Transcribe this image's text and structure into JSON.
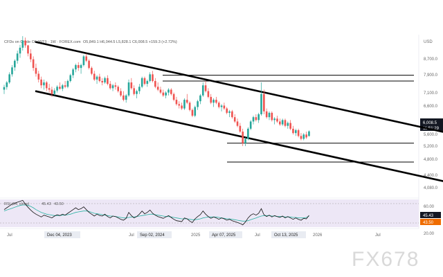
{
  "header": {
    "symbol_line": "CFDs on Crude Oil (WTI) · 1W · FOREX.com",
    "ohlc": "O5,849.1 H6,044.5 L5,828.1 C6,008.5 +159.3 (+2.72%)"
  },
  "price_axis": {
    "currency": "USD",
    "labels": [
      "8,700.0",
      "7,900.0",
      "7,100.0",
      "6,600.0",
      "5,600.0",
      "5,200.0",
      "4,800.0",
      "4,400.0",
      "4,080.0"
    ],
    "last_price": "6,008.5",
    "countdown": "11:51:29",
    "rsi_labels": [
      "60.00",
      "20.00"
    ],
    "rsi_value": "45.43",
    "rsi_ma_value": "43.50"
  },
  "time_axis": {
    "labels": [
      "Jul",
      "Dec 04, 2023",
      "Jul",
      "Sep 02, 2024",
      "2025",
      "Apr 07, 2025",
      "Jul",
      "Oct 13, 2025",
      "2026",
      "Jul"
    ],
    "highlighted": [
      "Dec 04, 2023",
      "Sep 02, 2024",
      "Apr 07, 2025",
      "Oct 13, 2025"
    ]
  },
  "rsi": {
    "label": "RSI (14, close)",
    "value": "45.43",
    "ma_value": "43.50"
  },
  "watermark": "FX678",
  "colors": {
    "up": "#26a69a",
    "down": "#ef5350",
    "rsi_line": "#111111",
    "rsi_ma": "#2bb3a3",
    "rsi_band": "#ede7f6",
    "last_price_bg": "#131722",
    "rsi_value_bg": "#131722",
    "rsi_ma_bg": "#ef6c00",
    "channel": "#000000"
  },
  "chart_data": {
    "type": "candlestick",
    "title": "CFDs on Crude Oil (WTI) · 1W · FOREX.com",
    "ylabel": "USD",
    "ylim": [
      3800,
      9400
    ],
    "timeframe": "1W",
    "x_range": [
      "2023-07",
      "2026-07"
    ],
    "candles": [
      {
        "x": 0,
        "o": 7450,
        "h": 7620,
        "l": 7300,
        "c": 7540
      },
      {
        "x": 1,
        "o": 7540,
        "h": 7750,
        "l": 7450,
        "c": 7700
      },
      {
        "x": 2,
        "o": 7700,
        "h": 8050,
        "l": 7650,
        "c": 7980
      },
      {
        "x": 3,
        "o": 7980,
        "h": 8300,
        "l": 7900,
        "c": 8220
      },
      {
        "x": 4,
        "o": 8220,
        "h": 8500,
        "l": 8100,
        "c": 8450
      },
      {
        "x": 5,
        "o": 8450,
        "h": 8800,
        "l": 8350,
        "c": 8700
      },
      {
        "x": 6,
        "o": 8700,
        "h": 9000,
        "l": 8550,
        "c": 8900
      },
      {
        "x": 7,
        "o": 8900,
        "h": 9300,
        "l": 8800,
        "c": 9150
      },
      {
        "x": 8,
        "o": 9150,
        "h": 9250,
        "l": 8900,
        "c": 8980
      },
      {
        "x": 9,
        "o": 8980,
        "h": 9000,
        "l": 8600,
        "c": 8700
      },
      {
        "x": 10,
        "o": 8700,
        "h": 8850,
        "l": 8400,
        "c": 8500
      },
      {
        "x": 11,
        "o": 8500,
        "h": 8600,
        "l": 8100,
        "c": 8200
      },
      {
        "x": 12,
        "o": 8200,
        "h": 8350,
        "l": 7900,
        "c": 8000
      },
      {
        "x": 13,
        "o": 8000,
        "h": 8100,
        "l": 7700,
        "c": 7800
      },
      {
        "x": 14,
        "o": 7800,
        "h": 7900,
        "l": 7500,
        "c": 7600
      },
      {
        "x": 15,
        "o": 7600,
        "h": 7800,
        "l": 7450,
        "c": 7700
      },
      {
        "x": 16,
        "o": 7700,
        "h": 7750,
        "l": 7400,
        "c": 7500
      },
      {
        "x": 17,
        "o": 7500,
        "h": 7650,
        "l": 7350,
        "c": 7450
      },
      {
        "x": 18,
        "o": 7450,
        "h": 7550,
        "l": 7200,
        "c": 7300
      },
      {
        "x": 19,
        "o": 7300,
        "h": 7500,
        "l": 7250,
        "c": 7420
      },
      {
        "x": 20,
        "o": 7420,
        "h": 7600,
        "l": 7350,
        "c": 7550
      },
      {
        "x": 21,
        "o": 7550,
        "h": 7700,
        "l": 7450,
        "c": 7480
      },
      {
        "x": 22,
        "o": 7480,
        "h": 7650,
        "l": 7400,
        "c": 7600
      },
      {
        "x": 23,
        "o": 7600,
        "h": 7750,
        "l": 7500,
        "c": 7550
      },
      {
        "x": 24,
        "o": 7550,
        "h": 7800,
        "l": 7500,
        "c": 7750
      },
      {
        "x": 25,
        "o": 7750,
        "h": 8000,
        "l": 7700,
        "c": 7950
      },
      {
        "x": 26,
        "o": 7950,
        "h": 8200,
        "l": 7850,
        "c": 8150
      },
      {
        "x": 27,
        "o": 8150,
        "h": 8350,
        "l": 8050,
        "c": 8300
      },
      {
        "x": 28,
        "o": 8300,
        "h": 8400,
        "l": 8100,
        "c": 8200
      },
      {
        "x": 29,
        "o": 8200,
        "h": 8350,
        "l": 8000,
        "c": 8300
      },
      {
        "x": 30,
        "o": 8300,
        "h": 8650,
        "l": 8250,
        "c": 8600
      },
      {
        "x": 31,
        "o": 8600,
        "h": 8700,
        "l": 8400,
        "c": 8450
      },
      {
        "x": 32,
        "o": 8450,
        "h": 8500,
        "l": 8150,
        "c": 8200
      },
      {
        "x": 33,
        "o": 8200,
        "h": 8250,
        "l": 7950,
        "c": 8000
      },
      {
        "x": 34,
        "o": 8000,
        "h": 8100,
        "l": 7750,
        "c": 7800
      },
      {
        "x": 35,
        "o": 7800,
        "h": 7950,
        "l": 7650,
        "c": 7900
      },
      {
        "x": 36,
        "o": 7900,
        "h": 8000,
        "l": 7700,
        "c": 7750
      },
      {
        "x": 37,
        "o": 7750,
        "h": 7850,
        "l": 7600,
        "c": 7700
      },
      {
        "x": 38,
        "o": 7700,
        "h": 7900,
        "l": 7650,
        "c": 7850
      },
      {
        "x": 39,
        "o": 7850,
        "h": 7950,
        "l": 7600,
        "c": 7650
      },
      {
        "x": 40,
        "o": 7650,
        "h": 7750,
        "l": 7450,
        "c": 7500
      },
      {
        "x": 41,
        "o": 7500,
        "h": 7650,
        "l": 7400,
        "c": 7600
      },
      {
        "x": 42,
        "o": 7600,
        "h": 7700,
        "l": 7450,
        "c": 7550
      },
      {
        "x": 43,
        "o": 7550,
        "h": 7600,
        "l": 7350,
        "c": 7400
      },
      {
        "x": 44,
        "o": 7400,
        "h": 7500,
        "l": 7200,
        "c": 7250
      },
      {
        "x": 45,
        "o": 7250,
        "h": 7400,
        "l": 7050,
        "c": 7100
      },
      {
        "x": 46,
        "o": 7100,
        "h": 7300,
        "l": 7000,
        "c": 7250
      },
      {
        "x": 47,
        "o": 7250,
        "h": 7800,
        "l": 7200,
        "c": 7700
      },
      {
        "x": 48,
        "o": 7700,
        "h": 7850,
        "l": 7450,
        "c": 7500
      },
      {
        "x": 49,
        "o": 7500,
        "h": 7600,
        "l": 7250,
        "c": 7300
      },
      {
        "x": 50,
        "o": 7300,
        "h": 7450,
        "l": 7150,
        "c": 7400
      },
      {
        "x": 51,
        "o": 7400,
        "h": 7650,
        "l": 7300,
        "c": 7550
      },
      {
        "x": 52,
        "o": 7550,
        "h": 7900,
        "l": 7500,
        "c": 7850
      },
      {
        "x": 53,
        "o": 7850,
        "h": 7900,
        "l": 7600,
        "c": 7650
      },
      {
        "x": 54,
        "o": 7650,
        "h": 7800,
        "l": 7550,
        "c": 7750
      },
      {
        "x": 55,
        "o": 7750,
        "h": 8050,
        "l": 7700,
        "c": 7980
      },
      {
        "x": 56,
        "o": 7980,
        "h": 8100,
        "l": 7700,
        "c": 7750
      },
      {
        "x": 57,
        "o": 7750,
        "h": 7850,
        "l": 7500,
        "c": 7550
      },
      {
        "x": 58,
        "o": 7550,
        "h": 7700,
        "l": 7400,
        "c": 7450
      },
      {
        "x": 59,
        "o": 7450,
        "h": 7550,
        "l": 7300,
        "c": 7350
      },
      {
        "x": 60,
        "o": 7350,
        "h": 7450,
        "l": 7200,
        "c": 7250
      },
      {
        "x": 61,
        "o": 7250,
        "h": 7400,
        "l": 7150,
        "c": 7350
      },
      {
        "x": 62,
        "o": 7350,
        "h": 7500,
        "l": 7250,
        "c": 7450
      },
      {
        "x": 63,
        "o": 7450,
        "h": 7500,
        "l": 7250,
        "c": 7300
      },
      {
        "x": 64,
        "o": 7300,
        "h": 7350,
        "l": 7050,
        "c": 7100
      },
      {
        "x": 65,
        "o": 7100,
        "h": 7200,
        "l": 6900,
        "c": 6950
      },
      {
        "x": 66,
        "o": 6950,
        "h": 7050,
        "l": 6800,
        "c": 6900
      },
      {
        "x": 67,
        "o": 6900,
        "h": 7000,
        "l": 6750,
        "c": 6800
      },
      {
        "x": 68,
        "o": 6800,
        "h": 7150,
        "l": 6750,
        "c": 7100
      },
      {
        "x": 69,
        "o": 7100,
        "h": 7300,
        "l": 6950,
        "c": 7000
      },
      {
        "x": 70,
        "o": 7000,
        "h": 7050,
        "l": 6700,
        "c": 6750
      },
      {
        "x": 71,
        "o": 6750,
        "h": 6800,
        "l": 6500,
        "c": 6550
      },
      {
        "x": 72,
        "o": 6550,
        "h": 6900,
        "l": 6500,
        "c": 6850
      },
      {
        "x": 73,
        "o": 6850,
        "h": 7100,
        "l": 6750,
        "c": 7050
      },
      {
        "x": 74,
        "o": 7050,
        "h": 7300,
        "l": 6950,
        "c": 7250
      },
      {
        "x": 75,
        "o": 7250,
        "h": 7700,
        "l": 7200,
        "c": 7600
      },
      {
        "x": 76,
        "o": 7600,
        "h": 7750,
        "l": 7350,
        "c": 7400
      },
      {
        "x": 77,
        "o": 7400,
        "h": 7500,
        "l": 7150,
        "c": 7200
      },
      {
        "x": 78,
        "o": 7200,
        "h": 7300,
        "l": 6950,
        "c": 7000
      },
      {
        "x": 79,
        "o": 7000,
        "h": 7150,
        "l": 6850,
        "c": 7100
      },
      {
        "x": 80,
        "o": 7100,
        "h": 7200,
        "l": 6950,
        "c": 7000
      },
      {
        "x": 81,
        "o": 7000,
        "h": 7050,
        "l": 6800,
        "c": 6850
      },
      {
        "x": 82,
        "o": 6850,
        "h": 6950,
        "l": 6700,
        "c": 6900
      },
      {
        "x": 83,
        "o": 6900,
        "h": 7000,
        "l": 6750,
        "c": 6800
      },
      {
        "x": 84,
        "o": 6800,
        "h": 6850,
        "l": 6600,
        "c": 6650
      },
      {
        "x": 85,
        "o": 6650,
        "h": 6750,
        "l": 6500,
        "c": 6700
      },
      {
        "x": 86,
        "o": 6700,
        "h": 6750,
        "l": 6450,
        "c": 6500
      },
      {
        "x": 87,
        "o": 6500,
        "h": 6600,
        "l": 6300,
        "c": 6350
      },
      {
        "x": 88,
        "o": 6350,
        "h": 6450,
        "l": 6150,
        "c": 6200
      },
      {
        "x": 89,
        "o": 6200,
        "h": 6300,
        "l": 5950,
        "c": 6000
      },
      {
        "x": 90,
        "o": 6000,
        "h": 6100,
        "l": 5500,
        "c": 5600
      },
      {
        "x": 91,
        "o": 5600,
        "h": 5800,
        "l": 5500,
        "c": 5750
      },
      {
        "x": 92,
        "o": 5750,
        "h": 6150,
        "l": 5700,
        "c": 6100
      },
      {
        "x": 93,
        "o": 6100,
        "h": 6400,
        "l": 6050,
        "c": 6350
      },
      {
        "x": 94,
        "o": 6350,
        "h": 6550,
        "l": 6250,
        "c": 6500
      },
      {
        "x": 95,
        "o": 6500,
        "h": 6600,
        "l": 6350,
        "c": 6400
      },
      {
        "x": 96,
        "o": 6400,
        "h": 6650,
        "l": 6300,
        "c": 6600
      },
      {
        "x": 97,
        "o": 6600,
        "h": 7700,
        "l": 6550,
        "c": 7300
      },
      {
        "x": 98,
        "o": 7300,
        "h": 7450,
        "l": 6600,
        "c": 6700
      },
      {
        "x": 99,
        "o": 6700,
        "h": 6800,
        "l": 6450,
        "c": 6500
      },
      {
        "x": 100,
        "o": 6500,
        "h": 6700,
        "l": 6400,
        "c": 6650
      },
      {
        "x": 101,
        "o": 6650,
        "h": 6700,
        "l": 6350,
        "c": 6400
      },
      {
        "x": 102,
        "o": 6400,
        "h": 6500,
        "l": 6250,
        "c": 6450
      },
      {
        "x": 103,
        "o": 6450,
        "h": 6550,
        "l": 6300,
        "c": 6350
      },
      {
        "x": 104,
        "o": 6350,
        "h": 6450,
        "l": 6200,
        "c": 6250
      },
      {
        "x": 105,
        "o": 6250,
        "h": 6450,
        "l": 6200,
        "c": 6400
      },
      {
        "x": 106,
        "o": 6400,
        "h": 6450,
        "l": 6150,
        "c": 6200
      },
      {
        "x": 107,
        "o": 6200,
        "h": 6350,
        "l": 6100,
        "c": 6300
      },
      {
        "x": 108,
        "o": 6300,
        "h": 6400,
        "l": 6050,
        "c": 6100
      },
      {
        "x": 109,
        "o": 6100,
        "h": 6200,
        "l": 5900,
        "c": 5950
      },
      {
        "x": 110,
        "o": 5950,
        "h": 6100,
        "l": 5850,
        "c": 6050
      },
      {
        "x": 111,
        "o": 6050,
        "h": 6100,
        "l": 5800,
        "c": 5850
      },
      {
        "x": 112,
        "o": 5850,
        "h": 5950,
        "l": 5700,
        "c": 5750
      },
      {
        "x": 113,
        "o": 5750,
        "h": 5950,
        "l": 5700,
        "c": 5900
      },
      {
        "x": 114,
        "o": 5900,
        "h": 6000,
        "l": 5750,
        "c": 5800
      },
      {
        "x": 115,
        "o": 5849.1,
        "h": 6044.5,
        "l": 5828.1,
        "c": 6008.5
      }
    ],
    "annotations": {
      "horizontal_levels": [
        7950,
        7750,
        5600,
        4950
      ],
      "channel": {
        "upper": [
          [
            0,
            9100
          ],
          [
            170,
            5900
          ]
        ],
        "lower": [
          [
            0,
            7400
          ],
          [
            170,
            4200
          ]
        ]
      }
    },
    "rsi": {
      "ylim": [
        20,
        80
      ],
      "levels": [
        70,
        30
      ],
      "values": [
        58,
        62,
        66,
        70,
        72,
        74,
        76,
        78,
        70,
        63,
        57,
        52,
        48,
        45,
        42,
        46,
        44,
        42,
        40,
        44,
        47,
        45,
        48,
        46,
        50,
        54,
        58,
        62,
        58,
        60,
        64,
        58,
        52,
        48,
        44,
        48,
        45,
        44,
        48,
        43,
        40,
        44,
        43,
        40,
        37,
        35,
        39,
        52,
        45,
        40,
        43,
        48,
        55,
        49,
        52,
        57,
        50,
        46,
        43,
        41,
        39,
        42,
        45,
        41,
        37,
        34,
        33,
        32,
        40,
        38,
        33,
        30,
        38,
        43,
        47,
        55,
        48,
        43,
        39,
        42,
        40,
        37,
        40,
        38,
        35,
        37,
        34,
        32,
        30,
        28,
        25,
        31,
        40,
        46,
        49,
        46,
        50,
        60,
        47,
        43,
        46,
        42,
        45,
        43,
        41,
        44,
        40,
        43,
        40,
        37,
        40,
        37,
        35,
        39,
        38,
        45.43
      ],
      "ma": [
        55,
        57,
        59,
        61,
        63,
        65,
        67,
        68,
        68,
        67,
        65,
        62,
        58,
        55,
        52,
        50,
        48,
        47,
        46,
        45,
        45,
        45,
        46,
        46,
        47,
        48,
        50,
        52,
        53,
        54,
        55,
        55,
        54,
        52,
        50,
        49,
        48,
        47,
        46,
        45,
        44,
        44,
        43,
        42,
        41,
        40,
        40,
        41,
        42,
        42,
        43,
        44,
        45,
        46,
        47,
        48,
        48,
        47,
        46,
        45,
        44,
        43,
        43,
        42,
        41,
        40,
        39,
        38,
        38,
        38,
        37,
        36,
        36,
        37,
        38,
        40,
        41,
        42,
        42,
        42,
        42,
        41,
        40,
        39,
        38,
        38,
        37,
        36,
        35,
        34,
        33,
        33,
        34,
        36,
        38,
        40,
        42,
        44,
        45,
        45,
        45,
        44,
        44,
        43,
        43,
        43,
        42,
        42,
        42,
        41,
        41,
        40,
        40,
        40,
        41,
        43.5
      ]
    }
  }
}
